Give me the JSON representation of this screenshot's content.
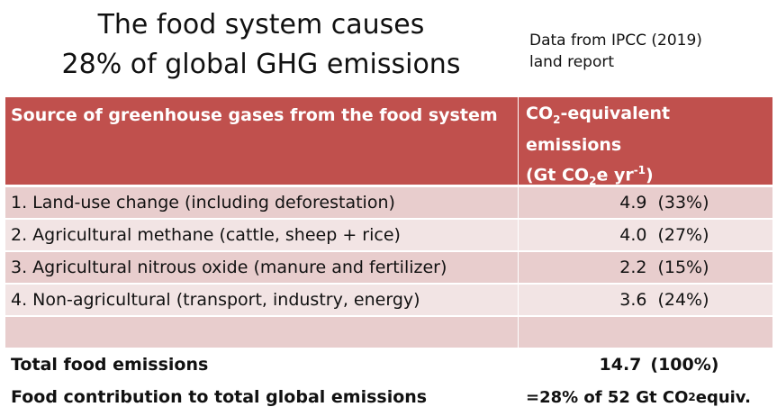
{
  "title": {
    "line1": "The food system causes",
    "line2": "28% of global GHG emissions"
  },
  "source_note": {
    "line1": "Data from IPCC (2019)",
    "line2": "land report"
  },
  "table": {
    "header": {
      "source_col": "Source of greenhouse gases from the food system",
      "emissions_col": {
        "line1_a": "CO",
        "line1_sub": "2",
        "line1_b": "-equivalent",
        "line2": "emissions",
        "line3_a": "(Gt CO",
        "line3_sub": "2",
        "line3_b": "e yr",
        "line3_sup": "-1",
        "line3_c": ")"
      }
    },
    "rows": [
      {
        "source": "1. Land-use change (including deforestation)",
        "value": "4.9",
        "percent": "(33%)"
      },
      {
        "source": "2. Agricultural methane (cattle, sheep + rice)",
        "value": "4.0",
        "percent": "(27%)"
      },
      {
        "source": "3. Agricultural nitrous oxide (manure and fertilizer)",
        "value": "2.2",
        "percent": "(15%)"
      },
      {
        "source": "4. Non-agricultural (transport, industry, energy)",
        "value": "3.6",
        "percent": "(24%)"
      }
    ],
    "total": {
      "label": "Total food emissions",
      "value": "14.7",
      "percent": "(100%)"
    },
    "contribution": {
      "label": "Food contribution to total global emissions",
      "value_a": "=28% of 52 Gt CO",
      "value_sub": "2",
      "value_b": " equiv."
    }
  },
  "colors": {
    "header_bg": "#c0504d",
    "row_dark": "#e8cdcd",
    "row_light": "#f2e4e4"
  }
}
